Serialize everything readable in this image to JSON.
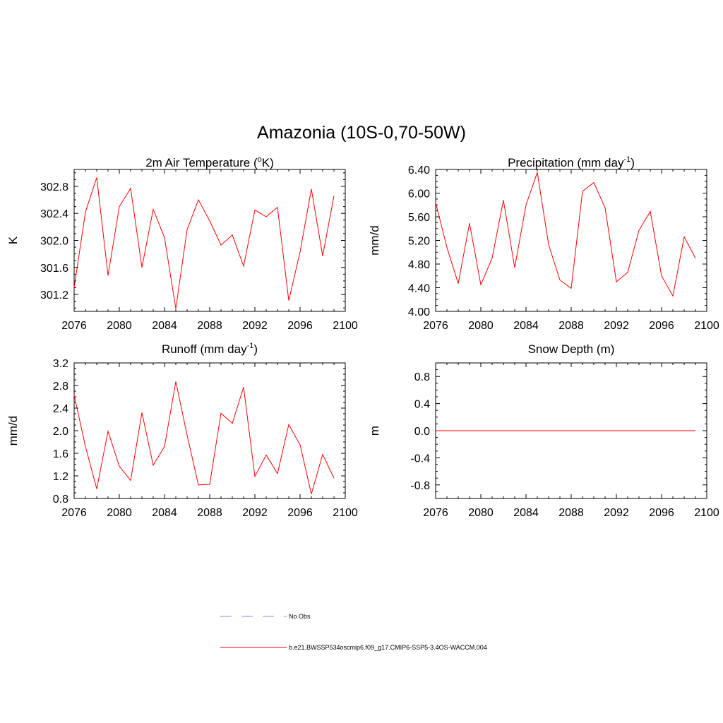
{
  "figure": {
    "title": "Amazonia (10S-0,70-50W)"
  },
  "legend": {
    "entries": [
      {
        "label": "No Obs",
        "color": "#8c8cd9",
        "style": "dashed"
      },
      {
        "label": "b.e21.BWSSP534oscmip6.f09_g17.CMIP6-SSP5-3.4OS-WACCM.004",
        "color": "#ff0000",
        "style": "solid"
      }
    ]
  },
  "chart_data": [
    {
      "id": "temp",
      "type": "line",
      "title": "2m Air Temperature (",
      "title_sup": "o",
      "title_tail": "K)",
      "xlabel": "",
      "ylabel": "K",
      "xlim": [
        2076,
        2100
      ],
      "ylim": [
        300.95,
        303.05
      ],
      "xticks": [
        2076,
        2080,
        2084,
        2088,
        2092,
        2096,
        2100
      ],
      "yticks": [
        301.2,
        301.6,
        302.0,
        302.4,
        302.8
      ],
      "ytick_labels": [
        "301.2",
        "301.6",
        "302.0",
        "302.4",
        "302.8"
      ],
      "x": [
        2076,
        2077,
        2078,
        2079,
        2080,
        2081,
        2082,
        2083,
        2084,
        2085,
        2086,
        2087,
        2088,
        2089,
        2090,
        2091,
        2092,
        2093,
        2094,
        2095,
        2096,
        2097,
        2098,
        2099
      ],
      "series": [
        {
          "name": "b.e21.BWSSP534oscmip6.f09_g17.CMIP6-SSP5-3.4OS-WACCM.004",
          "color": "#ff0000",
          "values": [
            301.3,
            302.42,
            302.93,
            301.48,
            302.5,
            302.77,
            301.6,
            302.46,
            302.04,
            300.99,
            302.16,
            302.6,
            302.29,
            301.93,
            302.08,
            301.62,
            302.45,
            302.35,
            302.49,
            301.11,
            301.83,
            302.76,
            301.77,
            302.66
          ]
        }
      ]
    },
    {
      "id": "precip",
      "type": "line",
      "title": "Precipitation (mm day",
      "title_sup": "-1",
      "title_tail": ")",
      "xlabel": "",
      "ylabel": "mm/d",
      "xlim": [
        2076,
        2100
      ],
      "ylim": [
        4.0,
        6.4
      ],
      "xticks": [
        2076,
        2080,
        2084,
        2088,
        2092,
        2096,
        2100
      ],
      "yticks": [
        4.0,
        4.4,
        4.8,
        5.2,
        5.6,
        6.0,
        6.4
      ],
      "ytick_labels": [
        "4.00",
        "4.40",
        "4.80",
        "5.20",
        "5.60",
        "6.00",
        "6.40"
      ],
      "x": [
        2076,
        2077,
        2078,
        2079,
        2080,
        2081,
        2082,
        2083,
        2084,
        2085,
        2086,
        2087,
        2088,
        2089,
        2090,
        2091,
        2092,
        2093,
        2094,
        2095,
        2096,
        2097,
        2098,
        2099
      ],
      "series": [
        {
          "name": "b.e21.BWSSP534oscmip6.f09_g17.CMIP6-SSP5-3.4OS-WACCM.004",
          "color": "#ff0000",
          "values": [
            5.84,
            5.08,
            4.47,
            5.49,
            4.45,
            4.9,
            5.88,
            4.74,
            5.8,
            6.35,
            5.13,
            4.53,
            4.39,
            6.03,
            6.18,
            5.75,
            4.5,
            4.66,
            5.37,
            5.69,
            4.6,
            4.26,
            5.26,
            4.9
          ]
        }
      ]
    },
    {
      "id": "runoff",
      "type": "line",
      "title": "Runoff (mm day",
      "title_sup": "-1",
      "title_tail": ")",
      "xlabel": "",
      "ylabel": "mm/d",
      "xlim": [
        2076,
        2100
      ],
      "ylim": [
        0.8,
        3.2
      ],
      "xticks": [
        2076,
        2080,
        2084,
        2088,
        2092,
        2096,
        2100
      ],
      "yticks": [
        0.8,
        1.2,
        1.6,
        2.0,
        2.4,
        2.8,
        3.2
      ],
      "ytick_labels": [
        "0.8",
        "1.2",
        "1.6",
        "2.0",
        "2.4",
        "2.8",
        "3.2"
      ],
      "x": [
        2076,
        2077,
        2078,
        2079,
        2080,
        2081,
        2082,
        2083,
        2084,
        2085,
        2086,
        2087,
        2088,
        2089,
        2090,
        2091,
        2092,
        2093,
        2094,
        2095,
        2096,
        2097,
        2098,
        2099
      ],
      "series": [
        {
          "name": "b.e21.BWSSP534oscmip6.f09_g17.CMIP6-SSP5-3.4OS-WACCM.004",
          "color": "#ff0000",
          "values": [
            2.63,
            1.72,
            0.97,
            1.99,
            1.37,
            1.12,
            2.32,
            1.39,
            1.72,
            2.87,
            1.92,
            1.04,
            1.05,
            2.31,
            2.13,
            2.77,
            1.19,
            1.57,
            1.24,
            2.11,
            1.75,
            0.88,
            1.58,
            1.16
          ]
        }
      ]
    },
    {
      "id": "snow",
      "type": "line",
      "title": "Snow Depth (m)",
      "title_sup": "",
      "title_tail": "",
      "xlabel": "",
      "ylabel": "m",
      "xlim": [
        2076,
        2100
      ],
      "ylim": [
        -1.0,
        1.0
      ],
      "xticks": [
        2076,
        2080,
        2084,
        2088,
        2092,
        2096,
        2100
      ],
      "yticks": [
        -0.8,
        -0.4,
        0.0,
        0.4,
        0.8
      ],
      "ytick_labels": [
        "-0.8",
        "-0.4",
        "0.0",
        "0.4",
        "0.8"
      ],
      "x": [
        2076,
        2077,
        2078,
        2079,
        2080,
        2081,
        2082,
        2083,
        2084,
        2085,
        2086,
        2087,
        2088,
        2089,
        2090,
        2091,
        2092,
        2093,
        2094,
        2095,
        2096,
        2097,
        2098,
        2099
      ],
      "series": [
        {
          "name": "b.e21.BWSSP534oscmip6.f09_g17.CMIP6-SSP5-3.4OS-WACCM.004",
          "color": "#ff0000",
          "values": [
            0,
            0,
            0,
            0,
            0,
            0,
            0,
            0,
            0,
            0,
            0,
            0,
            0,
            0,
            0,
            0,
            0,
            0,
            0,
            0,
            0,
            0,
            0,
            0
          ]
        }
      ]
    }
  ]
}
